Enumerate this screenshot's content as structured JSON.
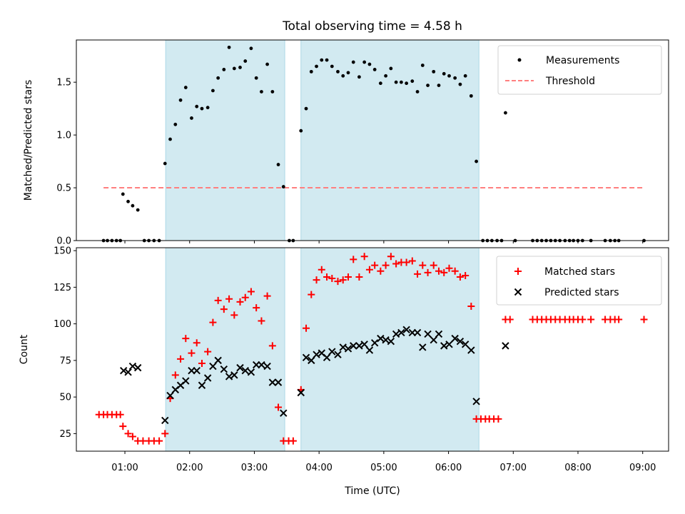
{
  "chart_data": {
    "title": "Total observing time = 4.58 h",
    "xlabel": "Time (UTC)",
    "x_unit": "hours UTC",
    "xlim": [
      0.25,
      9.4
    ],
    "x_ticks": [
      {
        "value": 1,
        "label": "01:00"
      },
      {
        "value": 2,
        "label": "02:00"
      },
      {
        "value": 3,
        "label": "03:00"
      },
      {
        "value": 4,
        "label": "04:00"
      },
      {
        "value": 5,
        "label": "05:00"
      },
      {
        "value": 6,
        "label": "06:00"
      },
      {
        "value": 7,
        "label": "07:00"
      },
      {
        "value": 8,
        "label": "08:00"
      },
      {
        "value": 9,
        "label": "09:00"
      }
    ],
    "observing_windows": [
      [
        1.63,
        3.47
      ],
      [
        3.72,
        6.47
      ]
    ],
    "shade_color": "#add8e6",
    "top_panel": {
      "type": "scatter",
      "ylabel": "Matched/Predicted stars",
      "ylim": [
        0,
        1.9
      ],
      "y_ticks": [
        {
          "value": 0,
          "label": "0.0"
        },
        {
          "value": 0.5,
          "label": "0.5"
        },
        {
          "value": 1.0,
          "label": "1.0"
        },
        {
          "value": 1.5,
          "label": "1.5"
        }
      ],
      "threshold": {
        "name": "Threshold",
        "value": 0.5,
        "x_range": [
          0.67,
          9.0
        ],
        "color": "#ff7f7f"
      },
      "measurements": {
        "name": "Measurements",
        "color": "#000000",
        "points": [
          [
            0.67,
            0
          ],
          [
            0.73,
            0
          ],
          [
            0.8,
            0
          ],
          [
            0.87,
            0
          ],
          [
            0.93,
            0
          ],
          [
            0.97,
            0.44
          ],
          [
            1.05,
            0.37
          ],
          [
            1.12,
            0.33
          ],
          [
            1.2,
            0.29
          ],
          [
            1.3,
            0
          ],
          [
            1.37,
            0
          ],
          [
            1.45,
            0
          ],
          [
            1.53,
            0
          ],
          [
            1.62,
            0.73
          ],
          [
            1.7,
            0.96
          ],
          [
            1.78,
            1.1
          ],
          [
            1.86,
            1.33
          ],
          [
            1.94,
            1.45
          ],
          [
            2.03,
            1.16
          ],
          [
            2.11,
            1.27
          ],
          [
            2.19,
            1.25
          ],
          [
            2.28,
            1.26
          ],
          [
            2.36,
            1.42
          ],
          [
            2.44,
            1.54
          ],
          [
            2.53,
            1.62
          ],
          [
            2.61,
            1.83
          ],
          [
            2.69,
            1.63
          ],
          [
            2.78,
            1.64
          ],
          [
            2.86,
            1.7
          ],
          [
            2.95,
            1.82
          ],
          [
            3.03,
            1.54
          ],
          [
            3.11,
            1.41
          ],
          [
            3.2,
            1.67
          ],
          [
            3.28,
            1.41
          ],
          [
            3.37,
            0.72
          ],
          [
            3.45,
            0.51
          ],
          [
            3.54,
            0
          ],
          [
            3.6,
            0
          ],
          [
            3.72,
            1.04
          ],
          [
            3.8,
            1.25
          ],
          [
            3.88,
            1.6
          ],
          [
            3.96,
            1.65
          ],
          [
            4.04,
            1.71
          ],
          [
            4.12,
            1.71
          ],
          [
            4.2,
            1.65
          ],
          [
            4.29,
            1.6
          ],
          [
            4.37,
            1.56
          ],
          [
            4.45,
            1.59
          ],
          [
            4.53,
            1.69
          ],
          [
            4.62,
            1.55
          ],
          [
            4.7,
            1.69
          ],
          [
            4.78,
            1.67
          ],
          [
            4.86,
            1.62
          ],
          [
            4.95,
            1.49
          ],
          [
            5.03,
            1.56
          ],
          [
            5.11,
            1.63
          ],
          [
            5.19,
            1.5
          ],
          [
            5.27,
            1.5
          ],
          [
            5.35,
            1.49
          ],
          [
            5.44,
            1.51
          ],
          [
            5.52,
            1.41
          ],
          [
            5.6,
            1.66
          ],
          [
            5.68,
            1.47
          ],
          [
            5.77,
            1.6
          ],
          [
            5.85,
            1.47
          ],
          [
            5.93,
            1.58
          ],
          [
            6.01,
            1.56
          ],
          [
            6.1,
            1.54
          ],
          [
            6.18,
            1.48
          ],
          [
            6.26,
            1.56
          ],
          [
            6.35,
            1.37
          ],
          [
            6.43,
            0.75
          ],
          [
            6.53,
            0
          ],
          [
            6.6,
            0
          ],
          [
            6.67,
            0
          ],
          [
            6.75,
            0
          ],
          [
            6.82,
            0
          ],
          [
            7.03,
            0
          ],
          [
            7.3,
            0
          ],
          [
            7.37,
            0
          ],
          [
            7.44,
            0
          ],
          [
            7.51,
            0
          ],
          [
            7.58,
            0
          ],
          [
            7.65,
            0
          ],
          [
            7.72,
            0
          ],
          [
            7.8,
            0
          ],
          [
            7.87,
            0
          ],
          [
            7.93,
            0
          ],
          [
            8.0,
            0
          ],
          [
            8.07,
            0
          ],
          [
            8.2,
            0
          ],
          [
            8.42,
            0
          ],
          [
            8.5,
            0
          ],
          [
            8.57,
            0
          ],
          [
            8.63,
            0
          ],
          [
            9.02,
            0
          ],
          [
            6.88,
            1.21
          ]
        ]
      }
    },
    "bottom_panel": {
      "type": "scatter",
      "ylabel": "Count",
      "ylim": [
        13,
        152
      ],
      "y_ticks": [
        {
          "value": 25,
          "label": "25"
        },
        {
          "value": 50,
          "label": "50"
        },
        {
          "value": 75,
          "label": "75"
        },
        {
          "value": 100,
          "label": "100"
        },
        {
          "value": 125,
          "label": "125"
        },
        {
          "value": 150,
          "label": "150"
        }
      ],
      "matched": {
        "name": "Matched stars",
        "color": "#ff0000",
        "marker": "+",
        "points": [
          [
            0.6,
            38
          ],
          [
            0.67,
            38
          ],
          [
            0.73,
            38
          ],
          [
            0.8,
            38
          ],
          [
            0.87,
            38
          ],
          [
            0.93,
            38
          ],
          [
            0.97,
            30
          ],
          [
            1.05,
            25
          ],
          [
            1.12,
            23
          ],
          [
            1.2,
            20
          ],
          [
            1.28,
            20
          ],
          [
            1.37,
            20
          ],
          [
            1.45,
            20
          ],
          [
            1.53,
            20
          ],
          [
            1.62,
            25
          ],
          [
            1.7,
            49
          ],
          [
            1.78,
            65
          ],
          [
            1.86,
            76
          ],
          [
            1.94,
            90
          ],
          [
            2.03,
            80
          ],
          [
            2.11,
            87
          ],
          [
            2.19,
            73
          ],
          [
            2.28,
            81
          ],
          [
            2.36,
            101
          ],
          [
            2.44,
            116
          ],
          [
            2.53,
            110
          ],
          [
            2.61,
            117
          ],
          [
            2.69,
            106
          ],
          [
            2.78,
            115
          ],
          [
            2.86,
            118
          ],
          [
            2.95,
            122
          ],
          [
            3.03,
            111
          ],
          [
            3.11,
            102
          ],
          [
            3.2,
            119
          ],
          [
            3.28,
            85
          ],
          [
            3.37,
            43
          ],
          [
            3.45,
            20
          ],
          [
            3.53,
            20
          ],
          [
            3.6,
            20
          ],
          [
            3.72,
            55
          ],
          [
            3.8,
            97
          ],
          [
            3.88,
            120
          ],
          [
            3.96,
            130
          ],
          [
            4.04,
            137
          ],
          [
            4.12,
            132
          ],
          [
            4.2,
            131
          ],
          [
            4.29,
            129
          ],
          [
            4.37,
            130
          ],
          [
            4.45,
            132
          ],
          [
            4.53,
            144
          ],
          [
            4.62,
            132
          ],
          [
            4.7,
            146
          ],
          [
            4.78,
            137
          ],
          [
            4.86,
            140
          ],
          [
            4.95,
            136
          ],
          [
            5.03,
            140
          ],
          [
            5.11,
            146
          ],
          [
            5.19,
            141
          ],
          [
            5.27,
            142
          ],
          [
            5.35,
            142
          ],
          [
            5.44,
            143
          ],
          [
            5.52,
            134
          ],
          [
            5.6,
            140
          ],
          [
            5.68,
            135
          ],
          [
            5.77,
            140
          ],
          [
            5.85,
            136
          ],
          [
            5.93,
            135
          ],
          [
            6.01,
            138
          ],
          [
            6.1,
            136
          ],
          [
            6.18,
            132
          ],
          [
            6.26,
            133
          ],
          [
            6.35,
            112
          ],
          [
            6.43,
            35
          ],
          [
            6.5,
            35
          ],
          [
            6.57,
            35
          ],
          [
            6.63,
            35
          ],
          [
            6.7,
            35
          ],
          [
            6.77,
            35
          ],
          [
            6.88,
            103
          ],
          [
            6.95,
            103
          ],
          [
            7.3,
            103
          ],
          [
            7.37,
            103
          ],
          [
            7.44,
            103
          ],
          [
            7.51,
            103
          ],
          [
            7.58,
            103
          ],
          [
            7.65,
            103
          ],
          [
            7.72,
            103
          ],
          [
            7.8,
            103
          ],
          [
            7.87,
            103
          ],
          [
            7.93,
            103
          ],
          [
            8.0,
            103
          ],
          [
            8.07,
            103
          ],
          [
            8.2,
            103
          ],
          [
            8.42,
            103
          ],
          [
            8.5,
            103
          ],
          [
            8.57,
            103
          ],
          [
            8.63,
            103
          ],
          [
            9.02,
            103
          ]
        ]
      },
      "predicted": {
        "name": "Predicted stars",
        "color": "#000000",
        "marker": "x",
        "points": [
          [
            0.98,
            68
          ],
          [
            1.05,
            67
          ],
          [
            1.12,
            71
          ],
          [
            1.2,
            70
          ],
          [
            1.62,
            34
          ],
          [
            1.7,
            51
          ],
          [
            1.78,
            55
          ],
          [
            1.86,
            58
          ],
          [
            1.94,
            61
          ],
          [
            2.03,
            68
          ],
          [
            2.11,
            68
          ],
          [
            2.19,
            58
          ],
          [
            2.28,
            63
          ],
          [
            2.36,
            71
          ],
          [
            2.44,
            75
          ],
          [
            2.53,
            69
          ],
          [
            2.61,
            64
          ],
          [
            2.69,
            65
          ],
          [
            2.78,
            70
          ],
          [
            2.86,
            68
          ],
          [
            2.95,
            67
          ],
          [
            3.03,
            72
          ],
          [
            3.11,
            72
          ],
          [
            3.2,
            71
          ],
          [
            3.28,
            60
          ],
          [
            3.37,
            60
          ],
          [
            3.45,
            39
          ],
          [
            3.72,
            53
          ],
          [
            3.8,
            77
          ],
          [
            3.88,
            75
          ],
          [
            3.96,
            79
          ],
          [
            4.04,
            80
          ],
          [
            4.12,
            77
          ],
          [
            4.2,
            81
          ],
          [
            4.29,
            79
          ],
          [
            4.37,
            84
          ],
          [
            4.45,
            83
          ],
          [
            4.53,
            85
          ],
          [
            4.62,
            85
          ],
          [
            4.7,
            86
          ],
          [
            4.78,
            82
          ],
          [
            4.86,
            87
          ],
          [
            4.95,
            90
          ],
          [
            5.03,
            89
          ],
          [
            5.11,
            88
          ],
          [
            5.19,
            93
          ],
          [
            5.27,
            94
          ],
          [
            5.35,
            96
          ],
          [
            5.44,
            94
          ],
          [
            5.52,
            94
          ],
          [
            5.6,
            84
          ],
          [
            5.68,
            93
          ],
          [
            5.77,
            89
          ],
          [
            5.85,
            93
          ],
          [
            5.93,
            85
          ],
          [
            6.01,
            86
          ],
          [
            6.1,
            90
          ],
          [
            6.18,
            88
          ],
          [
            6.26,
            86
          ],
          [
            6.35,
            82
          ],
          [
            6.43,
            47
          ],
          [
            6.88,
            85
          ]
        ]
      }
    }
  }
}
